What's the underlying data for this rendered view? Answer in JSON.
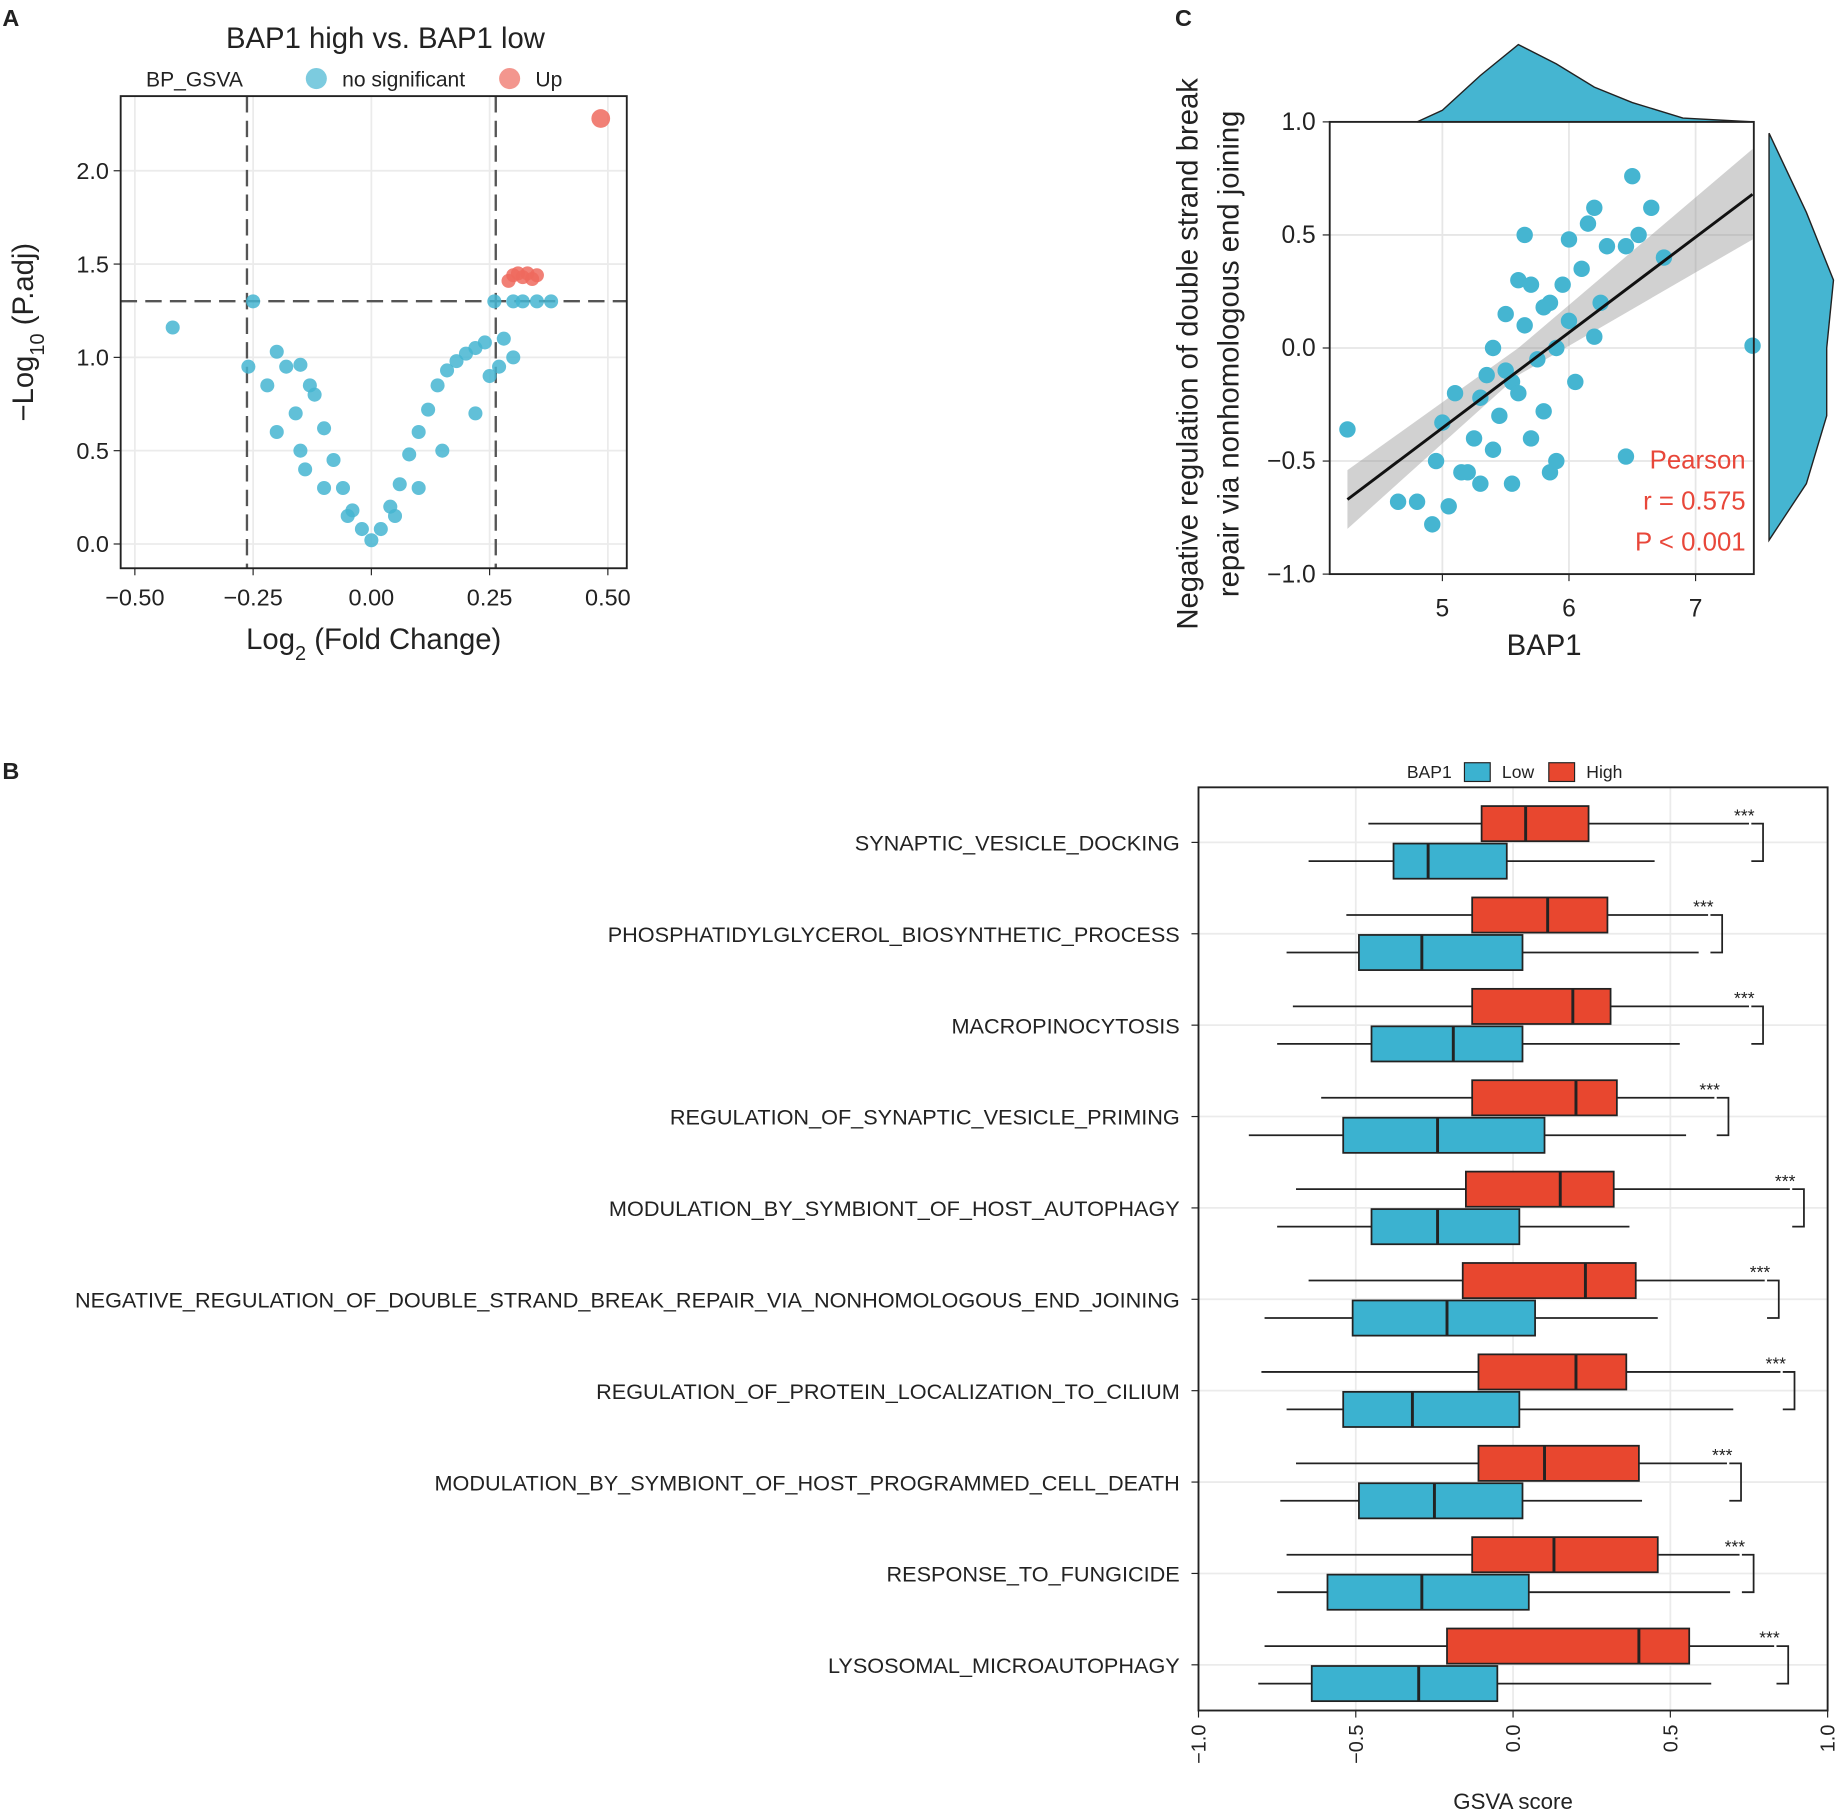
{
  "chart_data": [
    {
      "type": "volcano",
      "panel": "A",
      "title": "BAP1 high vs. BAP1 low",
      "legend_title": "BP_GSVA",
      "xlabel": [
        "Log",
        "2",
        " (Fold Change)"
      ],
      "ylabel": [
        "−Log",
        "10",
        " (P.adj)"
      ],
      "xlim": [
        -0.53,
        0.54
      ],
      "ylim": [
        -0.13,
        2.4
      ],
      "xticks": [
        {
          "value": -0.5,
          "label": "−0.50"
        },
        {
          "value": -0.25,
          "label": "−0.25"
        },
        {
          "value": 0,
          "label": "0.00"
        },
        {
          "value": 0.25,
          "label": "0.25"
        },
        {
          "value": 0.5,
          "label": "0.50"
        }
      ],
      "yticks": [
        {
          "value": 0,
          "label": "0.0"
        },
        {
          "value": 0.5,
          "label": "0.5"
        },
        {
          "value": 1,
          "label": "1.0"
        },
        {
          "value": 1.5,
          "label": "1.5"
        },
        {
          "value": 2,
          "label": "2.0"
        }
      ],
      "grid": true,
      "vlines": [
        -0.263,
        0.263
      ],
      "hline": 1.301,
      "series": [
        {
          "name": "no significant",
          "color": "#45b5d1",
          "x": [
            -0.42,
            -0.26,
            -0.25,
            -0.2,
            -0.18,
            -0.15,
            -0.13,
            -0.12,
            -0.1,
            -0.08,
            -0.06,
            -0.04,
            -0.02,
            0,
            0.02,
            0.04,
            0.06,
            0.08,
            0.1,
            0.12,
            0.14,
            0.16,
            0.18,
            0.2,
            0.22,
            0.24,
            0.26,
            0.28,
            0.3,
            0.32,
            0.35,
            0.38,
            0.22,
            0.15,
            0.1,
            0.05,
            -0.05,
            -0.1,
            -0.15,
            0.27,
            0.25,
            0.3,
            -0.22,
            -0.2,
            -0.16,
            -0.14
          ],
          "y": [
            1.16,
            0.95,
            1.3,
            1.03,
            0.95,
            0.96,
            0.85,
            0.8,
            0.62,
            0.45,
            0.3,
            0.18,
            0.08,
            0.02,
            0.08,
            0.2,
            0.32,
            0.48,
            0.6,
            0.72,
            0.85,
            0.93,
            0.98,
            1.02,
            1.05,
            1.08,
            1.3,
            1.1,
            1.3,
            1.3,
            1.3,
            1.3,
            0.7,
            0.5,
            0.3,
            0.15,
            0.15,
            0.3,
            0.5,
            0.95,
            0.9,
            1.0,
            0.85,
            0.6,
            0.7,
            0.4
          ]
        },
        {
          "name": "Up",
          "color": "#ee6a5e",
          "x": [
            0.3,
            0.31,
            0.32,
            0.33,
            0.34,
            0.35,
            0.29,
            0.485
          ],
          "y": [
            1.44,
            1.45,
            1.43,
            1.45,
            1.42,
            1.44,
            1.41,
            2.28
          ]
        }
      ]
    },
    {
      "type": "scatter",
      "panel": "C",
      "xlabel": "BAP1",
      "ylabel": [
        "Negative regulation of double strand break",
        "repair via nonhomologous end joining"
      ],
      "xlim": [
        4.11,
        7.46
      ],
      "ylim": [
        -1,
        1
      ],
      "xticks": [
        5,
        6,
        7
      ],
      "yticks": [
        {
          "value": -1,
          "label": "−1.0"
        },
        {
          "value": -0.5,
          "label": "−0.5"
        },
        {
          "value": 0,
          "label": "0.0"
        },
        {
          "value": 0.5,
          "label": "0.5"
        },
        {
          "value": 1,
          "label": "1.0"
        }
      ],
      "grid": true,
      "color": "#45b5d1",
      "x": [
        4.25,
        4.65,
        4.8,
        4.92,
        4.95,
        5.0,
        5.05,
        5.1,
        5.15,
        5.2,
        5.25,
        5.3,
        5.3,
        5.35,
        5.4,
        5.4,
        5.45,
        5.5,
        5.5,
        5.55,
        5.55,
        5.6,
        5.6,
        5.65,
        5.65,
        5.7,
        5.7,
        5.75,
        5.8,
        5.8,
        5.85,
        5.85,
        5.9,
        5.9,
        5.95,
        6.0,
        6.0,
        6.05,
        6.1,
        6.15,
        6.2,
        6.2,
        6.25,
        6.3,
        6.45,
        6.45,
        6.5,
        6.55,
        6.65,
        6.75,
        7.45
      ],
      "y": [
        -0.36,
        -0.68,
        -0.68,
        -0.78,
        -0.5,
        -0.33,
        -0.7,
        -0.2,
        -0.55,
        -0.55,
        -0.4,
        -0.22,
        -0.6,
        -0.12,
        0.0,
        -0.45,
        -0.3,
        -0.1,
        0.15,
        -0.15,
        -0.6,
        0.3,
        -0.2,
        0.5,
        0.1,
        -0.4,
        0.28,
        -0.05,
        0.18,
        -0.28,
        -0.55,
        0.2,
        0.0,
        -0.5,
        0.28,
        0.12,
        0.48,
        -0.15,
        0.35,
        0.55,
        0.62,
        0.05,
        0.2,
        0.45,
        0.45,
        -0.48,
        0.76,
        0.5,
        0.62,
        0.4,
        0.01
      ],
      "fit": {
        "x": [
          4.25,
          7.45
        ],
        "y": [
          -0.67,
          0.68
        ]
      },
      "ci": {
        "x": [
          4.25,
          5.6,
          7.45
        ],
        "lower": [
          -0.8,
          -0.12,
          0.48
        ],
        "upper": [
          -0.54,
          0.0,
          0.88
        ]
      },
      "x_density": {
        "x": [
          4.8,
          5.0,
          5.3,
          5.6,
          5.9,
          6.2,
          6.5,
          6.9,
          7.45
        ],
        "d": [
          0,
          0.15,
          0.6,
          1,
          0.75,
          0.45,
          0.25,
          0.05,
          0
        ]
      },
      "y_density": {
        "y": [
          -0.85,
          -0.6,
          -0.3,
          0,
          0.3,
          0.6,
          0.95
        ],
        "d": [
          0,
          0.55,
          0.85,
          0.85,
          0.95,
          0.55,
          0
        ]
      },
      "annotations": [
        "Pearson",
        "r = 0.575",
        "P < 0.001"
      ],
      "annotation_color": "#e8473a"
    },
    {
      "type": "box",
      "panel": "B",
      "xlabel": "GSVA score",
      "legend_title": "BAP1",
      "xlim": [
        -1,
        1
      ],
      "xticks": [
        {
          "value": -1,
          "label": "−1.0"
        },
        {
          "value": -0.5,
          "label": "−0.5"
        },
        {
          "value": 0,
          "label": "0.0"
        },
        {
          "value": 0.5,
          "label": "0.5"
        },
        {
          "value": 1,
          "label": "1.0"
        }
      ],
      "grid": true,
      "categories": [
        "SYNAPTIC_VESICLE_DOCKING",
        "PHOSPHATIDYLGLYCEROL_BIOSYNTHETIC_PROCESS",
        "MACROPINOCYTOSIS",
        "REGULATION_OF_SYNAPTIC_VESICLE_PRIMING",
        "MODULATION_BY_SYMBIONT_OF_HOST_AUTOPHAGY",
        "NEGATIVE_REGULATION_OF_DOUBLE_STRAND_BREAK_REPAIR_VIA_NONHOMOLOGOUS_END_JOINING",
        "REGULATION_OF_PROTEIN_LOCALIZATION_TO_CILIUM",
        "MODULATION_BY_SYMBIONT_OF_HOST_PROGRAMMED_CELL_DEATH",
        "RESPONSE_TO_FUNGICIDE",
        "LYSOSOMAL_MICROAUTOPHAGY"
      ],
      "significance": [
        "***",
        "***",
        "***",
        "***",
        "***",
        "***",
        "***",
        "***",
        "***",
        "***"
      ],
      "series": [
        {
          "name": "Low",
          "color": "#3bb2d0",
          "values": [
            [
              -0.65,
              -0.38,
              -0.27,
              -0.02,
              0.45
            ],
            [
              -0.72,
              -0.49,
              -0.29,
              0.03,
              0.59
            ],
            [
              -0.75,
              -0.45,
              -0.19,
              0.03,
              0.53
            ],
            [
              -0.84,
              -0.54,
              -0.24,
              0.1,
              0.55
            ],
            [
              -0.75,
              -0.45,
              -0.24,
              0.02,
              0.37
            ],
            [
              -0.79,
              -0.51,
              -0.21,
              0.07,
              0.46
            ],
            [
              -0.72,
              -0.54,
              -0.32,
              0.02,
              0.7
            ],
            [
              -0.74,
              -0.49,
              -0.25,
              0.03,
              0.41
            ],
            [
              -0.75,
              -0.59,
              -0.29,
              0.05,
              0.69
            ],
            [
              -0.81,
              -0.64,
              -0.3,
              -0.05,
              0.63
            ]
          ]
        },
        {
          "name": "High",
          "color": "#e8472f",
          "values": [
            [
              -0.46,
              -0.1,
              0.04,
              0.24,
              0.75
            ],
            [
              -0.53,
              -0.13,
              0.11,
              0.3,
              0.62
            ],
            [
              -0.7,
              -0.13,
              0.19,
              0.31,
              0.75
            ],
            [
              -0.61,
              -0.13,
              0.2,
              0.33,
              0.64
            ],
            [
              -0.69,
              -0.15,
              0.15,
              0.32,
              0.88
            ],
            [
              -0.65,
              -0.16,
              0.23,
              0.39,
              0.8
            ],
            [
              -0.8,
              -0.11,
              0.2,
              0.36,
              0.85
            ],
            [
              -0.69,
              -0.11,
              0.1,
              0.4,
              0.68
            ],
            [
              -0.72,
              -0.13,
              0.13,
              0.46,
              0.72
            ],
            [
              -0.79,
              -0.21,
              0.4,
              0.56,
              0.83
            ]
          ]
        }
      ]
    }
  ]
}
